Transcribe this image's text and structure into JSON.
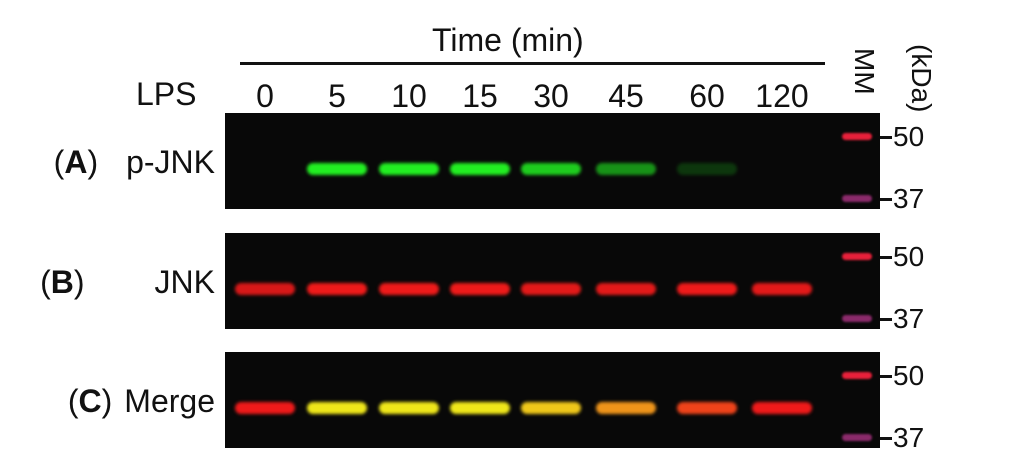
{
  "header": {
    "time_label": "Time (min)",
    "lps_label": "LPS",
    "mm_label": "MM",
    "unit_label": "(kDa)"
  },
  "lanes": [
    "0",
    "5",
    "10",
    "15",
    "30",
    "45",
    "60",
    "120"
  ],
  "markers": [
    "50",
    "37"
  ],
  "panels": [
    {
      "letter": "A",
      "label": "p-JNK",
      "channel": "green",
      "intensity": [
        0,
        1,
        1,
        1,
        0.85,
        0.6,
        0.2,
        0
      ]
    },
    {
      "letter": "B",
      "label": "JNK",
      "channel": "red",
      "intensity": [
        0.9,
        1,
        1,
        1,
        0.95,
        0.95,
        1,
        0.95
      ]
    },
    {
      "letter": "C",
      "label": "Merge",
      "channel": "merge",
      "intensity": [
        0,
        1,
        1,
        1,
        0.85,
        0.6,
        0.2,
        0
      ]
    }
  ],
  "colors": {
    "green": "#22ee22",
    "red": "#ee1a1a",
    "marker_50": "#e8203a",
    "marker_37": "#8a2a6a",
    "blot_bg": "#080808"
  }
}
